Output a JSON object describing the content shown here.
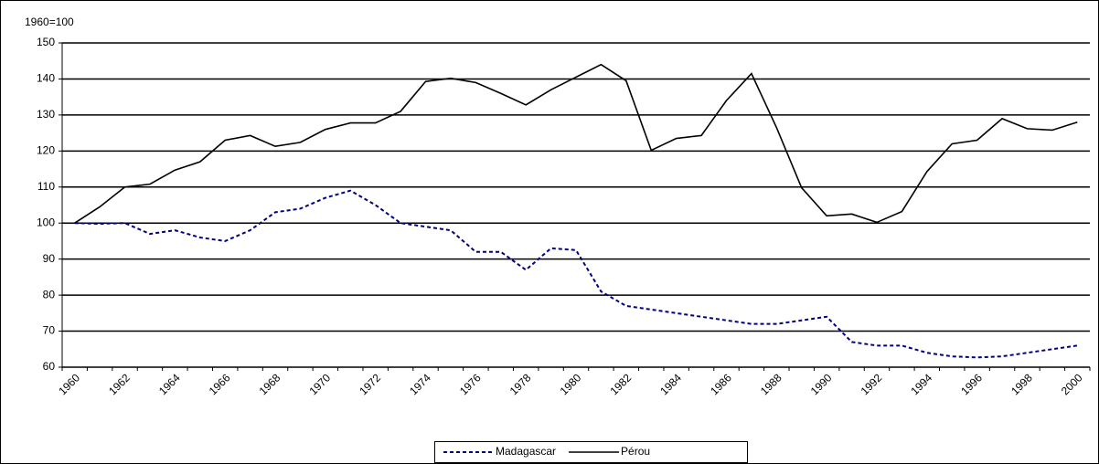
{
  "chart_data": {
    "type": "line",
    "y_unit_label": "1960=100",
    "categories": [
      "1960",
      null,
      "1962",
      null,
      "1964",
      null,
      "1966",
      null,
      "1968",
      null,
      "1970",
      null,
      "1972",
      null,
      "1974",
      null,
      "1976",
      null,
      "1978",
      null,
      "1980",
      null,
      "1982",
      null,
      "1984",
      null,
      "1986",
      null,
      "1988",
      null,
      "1990",
      null,
      "1992",
      null,
      "1994",
      null,
      "1996",
      null,
      "1998",
      null,
      "2000"
    ],
    "series": [
      {
        "name": "Madagascar",
        "color": "#000080",
        "dashed": true,
        "values": [
          100,
          99.8,
          100,
          97,
          98,
          96,
          95,
          98,
          103,
          104,
          107,
          109,
          105,
          100,
          99,
          98,
          92,
          92,
          87,
          93,
          92.5,
          81,
          77,
          76,
          75,
          74,
          73,
          72,
          72,
          73,
          74,
          67,
          66,
          66,
          64,
          63,
          62.7,
          63,
          64,
          65,
          66
        ]
      },
      {
        "name": "Pérou",
        "color": "#000000",
        "dashed": false,
        "values": [
          100,
          104.5,
          110,
          110.8,
          114.7,
          117,
          123,
          124.3,
          121.3,
          122.4,
          126,
          127.8,
          127.8,
          131,
          139.3,
          140.2,
          139,
          136,
          132.8,
          137,
          140.5,
          144,
          139.5,
          120.2,
          123.5,
          124.3,
          134,
          141.5,
          126.5,
          109.8,
          102,
          102.5,
          100.2,
          103.2,
          114.3,
          122,
          123,
          129,
          126.2,
          125.8,
          128
        ]
      }
    ],
    "ylim": [
      60,
      150
    ],
    "yticks": [
      60,
      70,
      80,
      90,
      100,
      110,
      120,
      130,
      140,
      150
    ],
    "grid": true,
    "legend": "bottom"
  }
}
